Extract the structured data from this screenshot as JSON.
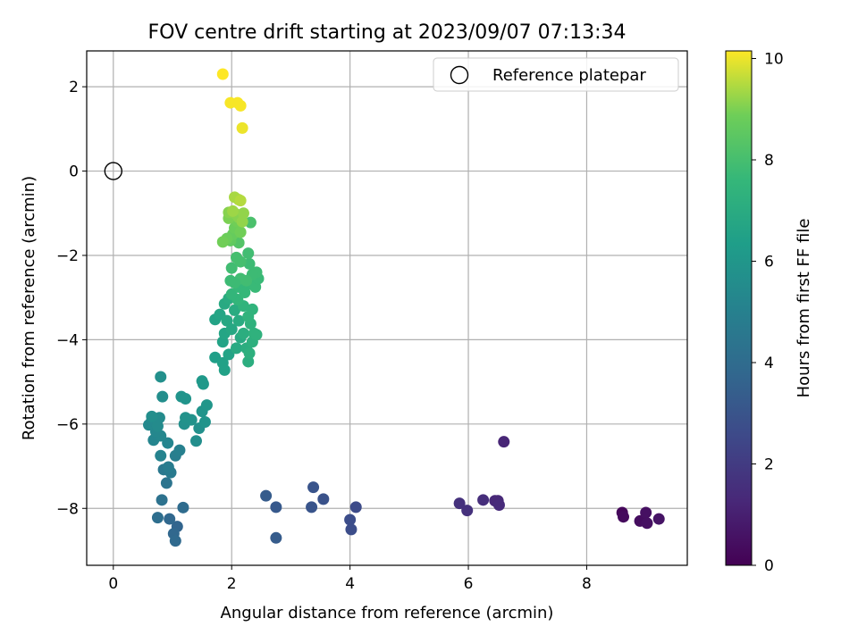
{
  "chart_data": {
    "type": "scatter",
    "title": "FOV centre drift starting at 2023/09/07 07:13:34",
    "xlabel": "Angular distance from reference (arcmin)",
    "ylabel": "Rotation from reference (arcmin)",
    "xlim": [
      -0.45,
      9.7
    ],
    "ylim": [
      -9.35,
      2.85
    ],
    "xticks": [
      0,
      2,
      4,
      6,
      8
    ],
    "yticks": [
      -8,
      -6,
      -4,
      -2,
      0,
      2
    ],
    "xtick_labels": [
      "0",
      "2",
      "4",
      "6",
      "8"
    ],
    "ytick_labels": [
      "−8",
      "−6",
      "−4",
      "−2",
      "0",
      "2"
    ],
    "grid": true,
    "legend": {
      "position": "top-right",
      "entries": [
        "Reference platepar"
      ]
    },
    "reference": {
      "label": "Reference platepar",
      "x": 0,
      "y": 0,
      "marker": "open-circle"
    },
    "colorbar": {
      "label": "Hours from first FF file",
      "range": [
        0,
        10.15
      ],
      "ticks": [
        0,
        2,
        4,
        6,
        8,
        10
      ],
      "tick_labels": [
        "0",
        "2",
        "4",
        "6",
        "8",
        "10"
      ],
      "colormap": "viridis"
    },
    "series": [
      {
        "points": [
          {
            "x": 8.6,
            "y": -8.1,
            "h": 0.2
          },
          {
            "x": 8.62,
            "y": -8.2,
            "h": 0.3
          },
          {
            "x": 8.9,
            "y": -8.3,
            "h": 0.4
          },
          {
            "x": 9.0,
            "y": -8.1,
            "h": 0.5
          },
          {
            "x": 9.02,
            "y": -8.35,
            "h": 0.5
          },
          {
            "x": 9.22,
            "y": -8.25,
            "h": 0.6
          },
          {
            "x": 6.6,
            "y": -6.42,
            "h": 1.2
          },
          {
            "x": 6.5,
            "y": -7.82,
            "h": 1.3
          },
          {
            "x": 6.45,
            "y": -7.82,
            "h": 1.3
          },
          {
            "x": 6.52,
            "y": -7.92,
            "h": 1.4
          },
          {
            "x": 6.25,
            "y": -7.8,
            "h": 1.5
          },
          {
            "x": 5.98,
            "y": -8.05,
            "h": 1.6
          },
          {
            "x": 5.85,
            "y": -7.88,
            "h": 1.6
          },
          {
            "x": 4.1,
            "y": -7.97,
            "h": 2.6
          },
          {
            "x": 4.0,
            "y": -8.27,
            "h": 2.7
          },
          {
            "x": 4.02,
            "y": -8.5,
            "h": 2.7
          },
          {
            "x": 3.55,
            "y": -7.78,
            "h": 2.9
          },
          {
            "x": 3.38,
            "y": -7.5,
            "h": 3.0
          },
          {
            "x": 3.35,
            "y": -7.97,
            "h": 3.0
          },
          {
            "x": 2.75,
            "y": -7.97,
            "h": 3.2
          },
          {
            "x": 2.58,
            "y": -7.7,
            "h": 3.3
          },
          {
            "x": 2.75,
            "y": -8.7,
            "h": 3.3
          },
          {
            "x": 1.08,
            "y": -8.43,
            "h": 3.7
          },
          {
            "x": 0.95,
            "y": -8.25,
            "h": 3.8
          },
          {
            "x": 1.02,
            "y": -8.6,
            "h": 3.8
          },
          {
            "x": 1.05,
            "y": -8.77,
            "h": 3.9
          },
          {
            "x": 1.18,
            "y": -7.98,
            "h": 4.0
          },
          {
            "x": 0.75,
            "y": -8.22,
            "h": 4.1
          },
          {
            "x": 0.82,
            "y": -7.8,
            "h": 4.3
          },
          {
            "x": 0.9,
            "y": -7.4,
            "h": 4.4
          },
          {
            "x": 0.85,
            "y": -7.08,
            "h": 4.6
          },
          {
            "x": 0.97,
            "y": -7.15,
            "h": 4.7
          },
          {
            "x": 0.93,
            "y": -7.02,
            "h": 4.8
          },
          {
            "x": 1.05,
            "y": -6.75,
            "h": 4.9
          },
          {
            "x": 1.12,
            "y": -6.62,
            "h": 5.0
          },
          {
            "x": 0.8,
            "y": -6.75,
            "h": 5.1
          },
          {
            "x": 0.92,
            "y": -6.45,
            "h": 5.2
          },
          {
            "x": 0.68,
            "y": -6.38,
            "h": 5.2
          },
          {
            "x": 0.8,
            "y": -6.28,
            "h": 5.3
          },
          {
            "x": 0.72,
            "y": -6.18,
            "h": 5.3
          },
          {
            "x": 0.6,
            "y": -6.02,
            "h": 5.4
          },
          {
            "x": 0.65,
            "y": -5.92,
            "h": 5.4
          },
          {
            "x": 0.75,
            "y": -6.05,
            "h": 5.5
          },
          {
            "x": 0.78,
            "y": -5.85,
            "h": 5.5
          },
          {
            "x": 0.65,
            "y": -5.82,
            "h": 5.6
          },
          {
            "x": 0.83,
            "y": -5.35,
            "h": 5.6
          },
          {
            "x": 0.8,
            "y": -4.88,
            "h": 5.7
          },
          {
            "x": 1.4,
            "y": -6.4,
            "h": 5.6
          },
          {
            "x": 1.45,
            "y": -6.1,
            "h": 5.7
          },
          {
            "x": 1.2,
            "y": -6.0,
            "h": 5.7
          },
          {
            "x": 1.22,
            "y": -5.85,
            "h": 5.8
          },
          {
            "x": 1.32,
            "y": -5.9,
            "h": 5.8
          },
          {
            "x": 1.55,
            "y": -5.95,
            "h": 5.9
          },
          {
            "x": 1.5,
            "y": -5.7,
            "h": 5.9
          },
          {
            "x": 1.58,
            "y": -5.55,
            "h": 6.0
          },
          {
            "x": 1.15,
            "y": -5.35,
            "h": 5.9
          },
          {
            "x": 1.22,
            "y": -5.4,
            "h": 5.9
          },
          {
            "x": 1.52,
            "y": -5.05,
            "h": 6.1
          },
          {
            "x": 1.5,
            "y": -4.98,
            "h": 6.1
          },
          {
            "x": 1.72,
            "y": -4.42,
            "h": 6.4
          },
          {
            "x": 1.85,
            "y": -4.55,
            "h": 6.5
          },
          {
            "x": 1.88,
            "y": -4.72,
            "h": 6.5
          },
          {
            "x": 1.85,
            "y": -4.05,
            "h": 6.6
          },
          {
            "x": 1.95,
            "y": -4.35,
            "h": 6.6
          },
          {
            "x": 1.72,
            "y": -3.52,
            "h": 6.6
          },
          {
            "x": 1.8,
            "y": -3.4,
            "h": 6.7
          },
          {
            "x": 1.88,
            "y": -3.85,
            "h": 6.7
          },
          {
            "x": 1.92,
            "y": -3.55,
            "h": 6.8
          },
          {
            "x": 2.0,
            "y": -3.75,
            "h": 6.8
          },
          {
            "x": 2.08,
            "y": -4.2,
            "h": 6.9
          },
          {
            "x": 2.15,
            "y": -3.95,
            "h": 6.9
          },
          {
            "x": 1.88,
            "y": -3.15,
            "h": 6.9
          },
          {
            "x": 1.95,
            "y": -3.02,
            "h": 7.0
          },
          {
            "x": 2.05,
            "y": -3.3,
            "h": 7.0
          },
          {
            "x": 2.12,
            "y": -3.55,
            "h": 7.0
          },
          {
            "x": 2.2,
            "y": -3.85,
            "h": 7.1
          },
          {
            "x": 2.25,
            "y": -4.2,
            "h": 7.1
          },
          {
            "x": 2.28,
            "y": -4.52,
            "h": 7.1
          },
          {
            "x": 2.3,
            "y": -4.32,
            "h": 7.2
          },
          {
            "x": 2.35,
            "y": -4.05,
            "h": 7.2
          },
          {
            "x": 2.38,
            "y": -3.85,
            "h": 7.3
          },
          {
            "x": 2.42,
            "y": -3.88,
            "h": 7.3
          },
          {
            "x": 2.32,
            "y": -3.62,
            "h": 7.3
          },
          {
            "x": 2.28,
            "y": -3.45,
            "h": 7.4
          },
          {
            "x": 2.35,
            "y": -3.28,
            "h": 7.4
          },
          {
            "x": 2.2,
            "y": -3.2,
            "h": 7.4
          },
          {
            "x": 2.1,
            "y": -3.05,
            "h": 7.5
          },
          {
            "x": 2.0,
            "y": -2.92,
            "h": 7.5
          },
          {
            "x": 2.12,
            "y": -2.75,
            "h": 7.6
          },
          {
            "x": 2.22,
            "y": -2.88,
            "h": 7.6
          },
          {
            "x": 2.3,
            "y": -2.68,
            "h": 7.6
          },
          {
            "x": 2.4,
            "y": -2.75,
            "h": 7.7
          },
          {
            "x": 2.45,
            "y": -2.55,
            "h": 7.7
          },
          {
            "x": 2.42,
            "y": -2.4,
            "h": 7.8
          },
          {
            "x": 2.35,
            "y": -2.45,
            "h": 7.8
          },
          {
            "x": 2.3,
            "y": -2.2,
            "h": 7.8
          },
          {
            "x": 2.28,
            "y": -1.95,
            "h": 7.9
          },
          {
            "x": 2.25,
            "y": -2.6,
            "h": 7.9
          },
          {
            "x": 2.15,
            "y": -2.55,
            "h": 7.9
          },
          {
            "x": 2.05,
            "y": -2.65,
            "h": 7.8
          },
          {
            "x": 1.98,
            "y": -2.6,
            "h": 7.8
          },
          {
            "x": 2.0,
            "y": -2.3,
            "h": 7.9
          },
          {
            "x": 2.08,
            "y": -2.05,
            "h": 8.0
          },
          {
            "x": 2.15,
            "y": -2.15,
            "h": 8.0
          },
          {
            "x": 2.32,
            "y": -1.22,
            "h": 8.1
          },
          {
            "x": 2.12,
            "y": -1.7,
            "h": 8.3
          },
          {
            "x": 1.98,
            "y": -1.65,
            "h": 8.6
          },
          {
            "x": 2.02,
            "y": -1.5,
            "h": 8.7
          },
          {
            "x": 1.92,
            "y": -1.6,
            "h": 8.8
          },
          {
            "x": 1.85,
            "y": -1.68,
            "h": 8.9
          },
          {
            "x": 2.05,
            "y": -1.35,
            "h": 8.8
          },
          {
            "x": 2.1,
            "y": -1.2,
            "h": 8.9
          },
          {
            "x": 2.15,
            "y": -1.45,
            "h": 8.9
          },
          {
            "x": 1.95,
            "y": -1.12,
            "h": 9.0
          },
          {
            "x": 2.05,
            "y": -1.0,
            "h": 9.1
          },
          {
            "x": 1.95,
            "y": -0.98,
            "h": 9.1
          },
          {
            "x": 2.12,
            "y": -1.1,
            "h": 9.1
          },
          {
            "x": 2.18,
            "y": -1.2,
            "h": 9.2
          },
          {
            "x": 2.2,
            "y": -1.0,
            "h": 9.2
          },
          {
            "x": 2.02,
            "y": -0.95,
            "h": 9.3
          },
          {
            "x": 2.05,
            "y": -0.62,
            "h": 9.4
          },
          {
            "x": 2.12,
            "y": -0.68,
            "h": 9.4
          },
          {
            "x": 2.15,
            "y": -0.7,
            "h": 9.5
          },
          {
            "x": 2.18,
            "y": 1.02,
            "h": 10.0
          },
          {
            "x": 2.15,
            "y": 1.55,
            "h": 10.1
          },
          {
            "x": 2.1,
            "y": 1.62,
            "h": 10.1
          },
          {
            "x": 1.98,
            "y": 1.62,
            "h": 10.1
          },
          {
            "x": 1.85,
            "y": 2.3,
            "h": 10.15
          }
        ]
      }
    ]
  }
}
